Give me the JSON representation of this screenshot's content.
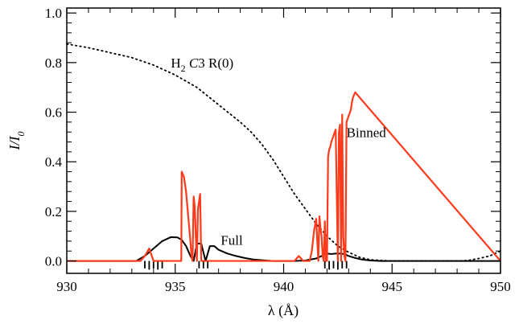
{
  "chart_data": {
    "type": "line",
    "xlabel": "λ (Å)",
    "ylabel": {
      "main": "I/I",
      "sub": "0"
    },
    "xlim": [
      930,
      950
    ],
    "ylim": [
      -0.05,
      1.02
    ],
    "xticks": [
      930,
      935,
      940,
      945,
      950
    ],
    "xtick_labels": [
      "930",
      "935",
      "940",
      "945",
      "950"
    ],
    "yticks": [
      0.0,
      0.2,
      0.4,
      0.6,
      0.8,
      1.0
    ],
    "ytick_labels": [
      "0.0",
      "0.2",
      "0.4",
      "0.6",
      "0.8",
      "1.0"
    ],
    "grid": false,
    "annotations": {
      "h2": {
        "pre": "H",
        "sub": "2",
        "italic": "C",
        "post": "3 R(0)",
        "x": 934.8,
        "y": 0.78
      },
      "binned": {
        "text": "Binned",
        "x": 942.9,
        "y": 0.5
      },
      "full": {
        "text": "Full",
        "x": 937.1,
        "y": 0.065
      }
    },
    "series": [
      {
        "style": "dotted",
        "color": "#000000",
        "x": [
          930,
          931,
          932,
          933,
          934,
          935,
          936,
          937,
          938,
          938.5,
          939,
          939.5,
          940,
          940.5,
          941,
          941.5,
          942,
          942.5,
          943,
          943.5,
          944,
          944.5,
          945,
          946,
          947,
          948,
          948.5,
          949,
          949.5,
          950
        ],
        "y": [
          0.875,
          0.86,
          0.84,
          0.82,
          0.79,
          0.75,
          0.7,
          0.63,
          0.56,
          0.52,
          0.47,
          0.41,
          0.34,
          0.27,
          0.21,
          0.15,
          0.1,
          0.06,
          0.035,
          0.015,
          0.005,
          0.002,
          0.0,
          0.0,
          0.0,
          0.0,
          0.002,
          0.01,
          0.02,
          0.04
        ]
      },
      {
        "style": "solid",
        "color": "#000000",
        "x": [
          930,
          933.2,
          933.6,
          934.0,
          934.4,
          934.8,
          935.1,
          935.3,
          935.5,
          935.7,
          935.85,
          936.0,
          936.2,
          936.4,
          936.6,
          936.8,
          937.0,
          937.4,
          937.8,
          938.2,
          938.6,
          939.0,
          939.5,
          940,
          940.5,
          941,
          941.5,
          941.8,
          942.0,
          942.2,
          942.4,
          942.6,
          942.8,
          943.0,
          943.3,
          943.6,
          944.0,
          944.5,
          945,
          947,
          950
        ],
        "y": [
          0.0,
          0.0,
          0.02,
          0.05,
          0.08,
          0.096,
          0.095,
          0.085,
          0.06,
          0.02,
          0.0,
          0.07,
          0.07,
          0.0,
          0.06,
          0.06,
          0.045,
          0.03,
          0.02,
          0.012,
          0.006,
          0.003,
          0.0,
          0.0,
          0.0,
          0.002,
          0.01,
          0.022,
          0.03,
          0.028,
          0.03,
          0.03,
          0.028,
          0.02,
          0.012,
          0.006,
          0.002,
          0.0,
          0.0,
          0.0,
          0.0
        ]
      },
      {
        "style": "sticks",
        "color": "#000000",
        "baseline": 0.0,
        "x": [
          933.6,
          933.8,
          934.0,
          934.2,
          934.4,
          936.1,
          936.3,
          936.5,
          941.9,
          942.1,
          942.3,
          942.5,
          942.7,
          942.9
        ],
        "y": [
          -0.03,
          -0.035,
          -0.03,
          -0.035,
          -0.03,
          -0.03,
          -0.03,
          -0.03,
          -0.03,
          -0.035,
          -0.03,
          -0.035,
          -0.03,
          -0.03
        ]
      },
      {
        "style": "solid",
        "color": "#ff3a1a",
        "x": [
          930,
          933.4,
          933.6,
          933.8,
          934.0,
          935.0,
          935.2,
          935.28,
          935.3,
          935.4,
          935.5,
          935.6,
          935.7,
          935.75,
          935.8,
          935.85,
          935.9,
          935.95,
          936.0,
          936.05,
          936.1,
          936.15,
          936.2,
          936.25,
          936.3,
          940.5,
          940.7,
          940.9,
          941.0,
          941.2,
          941.3,
          941.4,
          941.5,
          941.6,
          941.65,
          941.7,
          941.75,
          941.8,
          941.85,
          941.9,
          941.95,
          942.0,
          942.05,
          942.1,
          942.15,
          942.2,
          942.4,
          942.5,
          942.55,
          942.6,
          942.65,
          942.7,
          942.75,
          942.8,
          942.85,
          942.9,
          943.1,
          943.15,
          943.2,
          943.3,
          950
        ],
        "y": [
          0.0,
          0.0,
          0.02,
          0.05,
          0.0,
          0.0,
          0.0,
          0.0,
          0.36,
          0.34,
          0.28,
          0.18,
          0.08,
          0.02,
          0.0,
          0.26,
          0.22,
          0.1,
          0.0,
          0.21,
          0.24,
          0.27,
          0.0,
          0.0,
          0.0,
          0.0,
          0.02,
          0.0,
          0.0,
          0.0,
          0.04,
          0.12,
          0.17,
          0.0,
          0.18,
          0.13,
          0.1,
          0.02,
          0.0,
          0.16,
          0.0,
          0.0,
          0.42,
          0.45,
          0.46,
          0.48,
          0.53,
          0.0,
          0.52,
          0.55,
          0.0,
          0.59,
          0.1,
          0.02,
          0.0,
          0.56,
          0.61,
          0.64,
          0.66,
          0.68,
          0.0
        ]
      }
    ]
  }
}
